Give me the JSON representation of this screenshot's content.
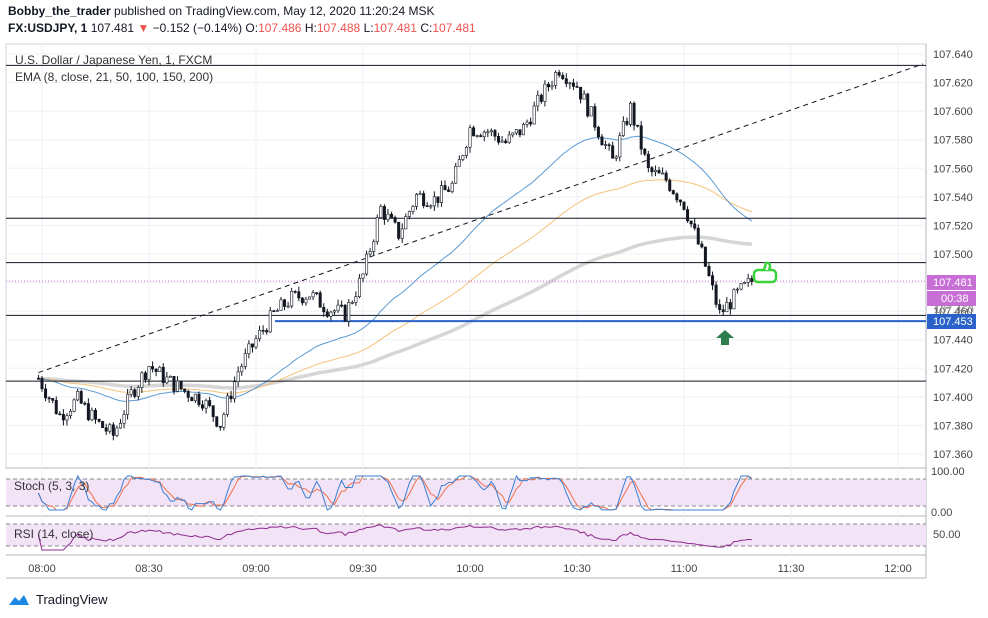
{
  "header": {
    "publisher": "Bobby_the_trader",
    "published_text": "published on TradingView.com, May 12, 2020 11:20:24 MSK",
    "symbol": "FX:USDJPY, 1",
    "last": "107.481",
    "change_arrow": "▼",
    "change": "−0.152 (−0.14%)",
    "o_label": "O:",
    "o_value": "107.486",
    "h_label": "H:",
    "h_value": "107.488",
    "l_label": "L:",
    "l_value": "107.481",
    "c_label": "C:",
    "c_value": "107.481"
  },
  "legend": {
    "instrument": "U.S. Dollar / Japanese Yen, 1, FXCM",
    "ema": "EMA (8, close, 21, 50, 100, 150, 200)"
  },
  "indicators": {
    "stoch_label": "Stoch (5, 3, 3)",
    "rsi_label": "RSI (14, close)",
    "stoch_ticks": [
      "100.00",
      "0.00"
    ],
    "rsi_ticks": [
      "50.00"
    ]
  },
  "price_tags": {
    "last_price": "107.481",
    "countdown": "00:38",
    "partial": "107.460",
    "level": "107.453"
  },
  "colors": {
    "up": "#131722",
    "down": "#131722",
    "ema_blue": "#5b9bd5",
    "ema_orange": "#f5c27a",
    "ema_gray": "#d6d6d6",
    "level_blue": "#2a62c9",
    "last_price_tag": "#c86fd6",
    "arrow_green": "#2e7d4f",
    "thumb_green": "#3ad13a",
    "stoch_bg": "#f3e3f7",
    "stoch_k": "#3a7fd5",
    "stoch_d": "#f0704a",
    "rsi_line": "#8e2a8e"
  },
  "icons": [
    "up-arrow-icon",
    "thumbs-up-icon",
    "tradingview-logo-icon"
  ],
  "footer": {
    "brand": "TradingView"
  },
  "chart_data": {
    "type": "candlestick",
    "x_ticks": [
      "08:00",
      "08:30",
      "09:00",
      "09:30",
      "10:00",
      "10:30",
      "11:00",
      "11:30",
      "12:00"
    ],
    "y_ticks": [
      "107.640",
      "107.620",
      "107.600",
      "107.580",
      "107.560",
      "107.540",
      "107.520",
      "107.500",
      "107.480",
      "107.460",
      "107.440",
      "107.420",
      "107.400",
      "107.380",
      "107.360"
    ],
    "ylim": [
      107.347,
      107.645
    ],
    "horizontal_levels": [
      107.632,
      107.525,
      107.494,
      107.457,
      107.411
    ],
    "blue_level": 107.453,
    "trend_line": [
      {
        "t": "07:59",
        "price": 107.417
      },
      {
        "t": "12:07",
        "price": 107.633
      }
    ],
    "candle_close_path": [
      [
        "07:59",
        107.413
      ],
      [
        "08:05",
        107.387
      ],
      [
        "08:10",
        107.398
      ],
      [
        "08:15",
        107.383
      ],
      [
        "08:20",
        107.373
      ],
      [
        "08:25",
        107.402
      ],
      [
        "08:30",
        107.422
      ],
      [
        "08:35",
        107.412
      ],
      [
        "08:40",
        107.404
      ],
      [
        "08:45",
        107.398
      ],
      [
        "08:50",
        107.381
      ],
      [
        "08:55",
        107.418
      ],
      [
        "09:00",
        107.44
      ],
      [
        "09:05",
        107.458
      ],
      [
        "09:10",
        107.469
      ],
      [
        "09:15",
        107.472
      ],
      [
        "09:20",
        107.462
      ],
      [
        "09:25",
        107.458
      ],
      [
        "09:30",
        107.485
      ],
      [
        "09:35",
        107.532
      ],
      [
        "09:40",
        107.514
      ],
      [
        "09:45",
        107.541
      ],
      [
        "09:50",
        107.538
      ],
      [
        "09:55",
        107.548
      ],
      [
        "10:00",
        107.588
      ],
      [
        "10:05",
        107.586
      ],
      [
        "10:10",
        107.578
      ],
      [
        "10:15",
        107.588
      ],
      [
        "10:20",
        107.61
      ],
      [
        "10:25",
        107.63
      ],
      [
        "10:30",
        107.618
      ],
      [
        "10:35",
        107.592
      ],
      [
        "10:40",
        107.565
      ],
      [
        "10:45",
        107.602
      ],
      [
        "10:50",
        107.558
      ],
      [
        "10:55",
        107.552
      ],
      [
        "11:00",
        107.535
      ],
      [
        "11:05",
        107.5
      ],
      [
        "11:10",
        107.458
      ],
      [
        "11:15",
        107.472
      ],
      [
        "11:19",
        107.481
      ]
    ],
    "last_price": 107.481
  }
}
